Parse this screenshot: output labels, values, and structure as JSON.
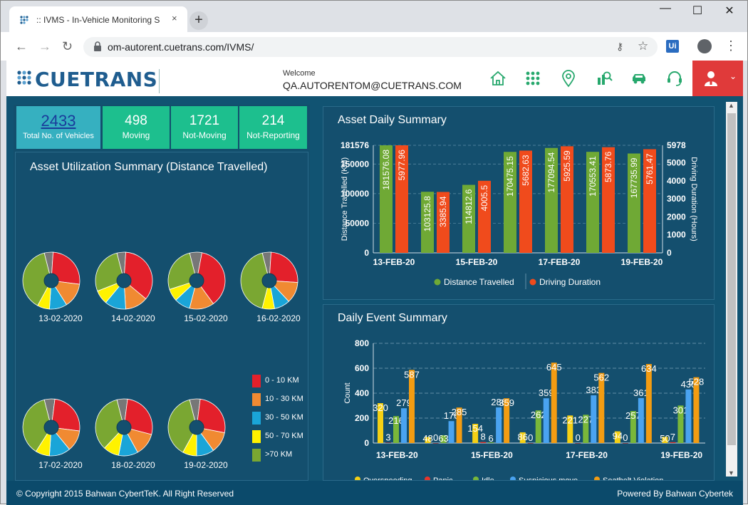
{
  "browser": {
    "tab_title": ":: IVMS - In-Vehicle Monitoring S",
    "url": "om-autorent.cuetrans.com/IVMS/",
    "new_tab": "+",
    "tab_close": "×",
    "ext_label": "Ui"
  },
  "header": {
    "logo": "CUETRANS",
    "welcome_label": "Welcome",
    "user": "QA.AUTORENTOM@CUETRANS.COM"
  },
  "kpis": [
    {
      "value": "2433",
      "label": "Total No. of Vehicles"
    },
    {
      "value": "498",
      "label": "Moving"
    },
    {
      "value": "1721",
      "label": "Not-Moving"
    },
    {
      "value": "214",
      "label": "Not-Reporting"
    }
  ],
  "utilization": {
    "title": "Asset Utilization Summary (Distance Travelled)",
    "dates": [
      "13-02-2020",
      "14-02-2020",
      "15-02-2020",
      "16-02-2020",
      "17-02-2020",
      "18-02-2020",
      "19-02-2020"
    ],
    "legend": [
      {
        "label": "0 - 10 KM",
        "color": "#e3202b"
      },
      {
        "label": "10 - 30 KM",
        "color": "#f08a32"
      },
      {
        "label": "30 - 50 KM",
        "color": "#1aa5d8"
      },
      {
        "label": "50 - 70 KM",
        "color": "#fff200"
      },
      {
        "label": ">70 KM",
        "color": "#7aa732"
      }
    ],
    "gray_color": "#777777"
  },
  "chart_data": [
    {
      "type": "pie",
      "title": "Asset Utilization Summary (Distance Travelled)",
      "pies": [
        {
          "date": "13-02-2020",
          "slices": [
            0.05,
            0.26,
            0.14,
            0.1,
            0.07,
            0.38
          ]
        },
        {
          "date": "14-02-2020",
          "slices": [
            0.05,
            0.35,
            0.13,
            0.12,
            0.08,
            0.27
          ]
        },
        {
          "date": "15-02-2020",
          "slices": [
            0.07,
            0.37,
            0.14,
            0.09,
            0.07,
            0.26
          ]
        },
        {
          "date": "16-02-2020",
          "slices": [
            0.05,
            0.25,
            0.12,
            0.09,
            0.07,
            0.42
          ]
        },
        {
          "date": "17-02-2020",
          "slices": [
            0.06,
            0.25,
            0.12,
            0.12,
            0.08,
            0.37
          ]
        },
        {
          "date": "18-02-2020",
          "slices": [
            0.06,
            0.27,
            0.13,
            0.11,
            0.09,
            0.34
          ]
        },
        {
          "date": "19-02-2020",
          "slices": [
            0.06,
            0.26,
            0.12,
            0.1,
            0.08,
            0.38
          ]
        }
      ],
      "slice_order": [
        "gray",
        "0 - 10 KM",
        "10 - 30 KM",
        "30 - 50 KM",
        "50 - 70 KM",
        ">70 KM"
      ]
    },
    {
      "type": "bar",
      "title": "Asset Daily Summary",
      "categories": [
        "13-FEB-20",
        "14-FEB-20",
        "15-FEB-20",
        "16-FEB-20",
        "17-FEB-20",
        "18-FEB-20",
        "19-FEB-20"
      ],
      "x_tick_labels": [
        "13-FEB-20",
        "15-FEB-20",
        "17-FEB-20",
        "19-FEB-20"
      ],
      "ylabel": "Distance Travelled (KM)",
      "y2label": "Driving Duration (Hours)",
      "ylim": [
        0,
        181576
      ],
      "y2lim": [
        0,
        5978
      ],
      "yticks": [
        "181576",
        "150000",
        "100000",
        "50000",
        "0"
      ],
      "y2ticks": [
        "5978",
        "5000",
        "4000",
        "3000",
        "2000",
        "1000",
        "0"
      ],
      "series": [
        {
          "name": "Distance Travelled",
          "color": "#6fa935",
          "axis": "left",
          "values": [
            181576.08,
            103125.8,
            114812.6,
            170475.15,
            177094.54,
            170553.41,
            167735.99
          ],
          "labels": [
            "181576.08",
            "103125.8",
            "114812.6",
            "170475.15",
            "177094.54",
            "170553.41",
            "167735.99"
          ]
        },
        {
          "name": "Driving Duration",
          "color": "#f04b1c",
          "axis": "right",
          "values": [
            5977.96,
            3385.94,
            4005.5,
            5682.63,
            5925.59,
            5873.76,
            5761.47
          ],
          "labels": [
            "5977.96",
            "3385.94",
            "4005.5",
            "5682.63",
            "5925.59",
            "5873.76",
            "5761.47"
          ]
        }
      ]
    },
    {
      "type": "bar",
      "title": "Daily Event Summary",
      "categories": [
        "13-FEB-20",
        "14-FEB-20",
        "15-FEB-20",
        "16-FEB-20",
        "17-FEB-20",
        "18-FEB-20",
        "19-FEB-20"
      ],
      "x_tick_labels": [
        "13-FEB-20",
        "15-FEB-20",
        "17-FEB-20",
        "19-FEB-20"
      ],
      "ylabel": "Count",
      "ylim": [
        0,
        800
      ],
      "yticks": [
        "800",
        "600",
        "400",
        "200",
        "0"
      ],
      "series": [
        {
          "name": "Overspeeding",
          "color": "#f5d014",
          "values": [
            320,
            48,
            154,
            86,
            221,
            94,
            50
          ]
        },
        {
          "name": "Panic",
          "color": "#e8352b",
          "values": [
            3,
            0,
            8,
            0,
            0,
            0,
            7
          ]
        },
        {
          "name": "Idle",
          "color": "#79b73a",
          "values": [
            216,
            63,
            6,
            262,
            227,
            257,
            301
          ]
        },
        {
          "name": "Suspicious move",
          "color": "#4aa3f0",
          "values": [
            279,
            176,
            286,
            359,
            383,
            361,
            430
          ]
        },
        {
          "name": "Seatbelt Violation",
          "color": "#f39c12",
          "values": [
            587,
            285,
            359,
            645,
            562,
            634,
            528
          ]
        }
      ]
    }
  ],
  "footer": {
    "copyright": "© Copyright 2015 Bahwan CybertTeK. All Right Reserved",
    "powered": "Powered By Bahwan Cybertek"
  },
  "colors": {
    "app_bg": "#115372",
    "header_red": "#e03a3a",
    "kpi_green": "#1dbf8e",
    "kpi_teal": "#36b0c0",
    "icon_green": "#27a86d"
  }
}
